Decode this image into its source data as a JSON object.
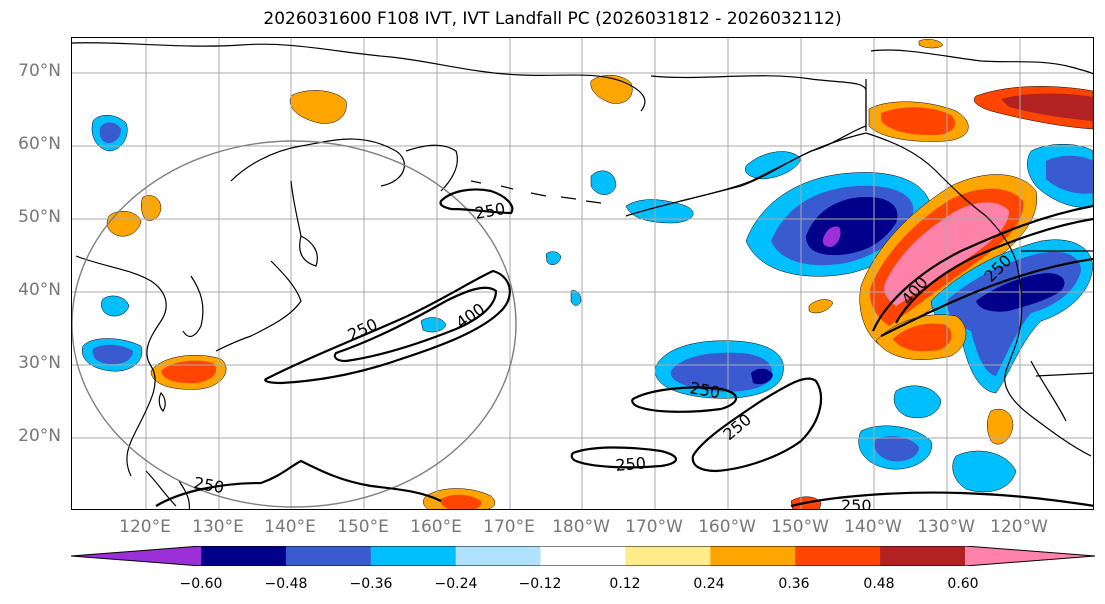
{
  "title": "2026031600 F108 IVT, IVT Landfall PC (2026031812 - 2026032112)",
  "axes": {
    "lat_labels": [
      "70°N",
      "60°N",
      "50°N",
      "40°N",
      "30°N",
      "20°N"
    ],
    "lon_labels": [
      "120°E",
      "130°E",
      "140°E",
      "150°E",
      "160°E",
      "170°E",
      "180°W",
      "170°W",
      "160°W",
      "150°W",
      "140°W",
      "130°W",
      "120°W"
    ]
  },
  "contours": {
    "ivt_labels": [
      "250",
      "250",
      "400",
      "250",
      "250",
      "250",
      "250",
      "400",
      "250",
      "250"
    ]
  },
  "colorbar": {
    "colors": [
      "#9b30d9",
      "#00008b",
      "#3a5bcf",
      "#00bfff",
      "#b0e2ff",
      "#ffffff",
      "#ffec8b",
      "#ffa500",
      "#ff4500",
      "#b22222",
      "#ff82ab"
    ],
    "under_color": "#9b30d9",
    "over_color": "#ff82ab",
    "tick_labels": [
      "−0.60",
      "−0.48",
      "−0.36",
      "−0.24",
      "−0.12",
      "0.12",
      "0.24",
      "0.36",
      "0.48",
      "0.60"
    ]
  }
}
